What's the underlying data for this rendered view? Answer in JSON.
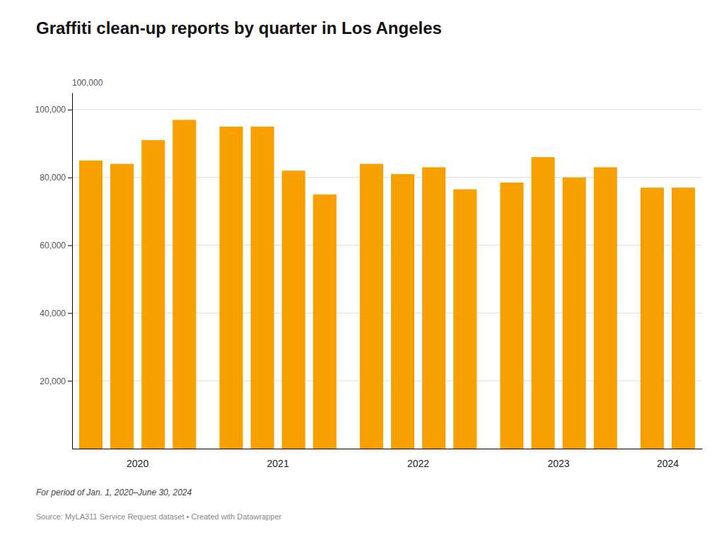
{
  "chart_data": {
    "type": "bar",
    "title": "Graffiti clean-up reports by quarter in Los Angeles",
    "subtitle": "For period of Jan. 1, 2020–June 30, 2024",
    "source": "Source: MyLA311 Service Request dataset • Created with Datawrapper",
    "annotation": "100,000",
    "categories": [
      null,
      null,
      null,
      null,
      null,
      null,
      null,
      null,
      null,
      null,
      null,
      null,
      null,
      null,
      null,
      null,
      null,
      null
    ],
    "values": [
      85000,
      84000,
      91000,
      97000,
      95000,
      95000,
      82000,
      75000,
      84000,
      81000,
      83000,
      76500,
      78500,
      86000,
      80000,
      83000,
      77000,
      77000
    ],
    "groups": [
      {
        "name": "2020",
        "count": 4
      },
      {
        "name": "2021",
        "count": 4
      },
      {
        "name": "2022",
        "count": 4
      },
      {
        "name": "2023",
        "count": 4
      },
      {
        "name": "2024",
        "count": 2
      }
    ],
    "color": "#F8A000",
    "ylim": [
      0,
      105000
    ],
    "yticks": [
      {
        "value": 20000,
        "label": "20,000"
      },
      {
        "value": 40000,
        "label": "40,000"
      },
      {
        "value": 60000,
        "label": "60,000"
      },
      {
        "value": 80000,
        "label": "80,000"
      },
      {
        "value": 100000,
        "label": "100,000"
      }
    ],
    "grid": true
  }
}
